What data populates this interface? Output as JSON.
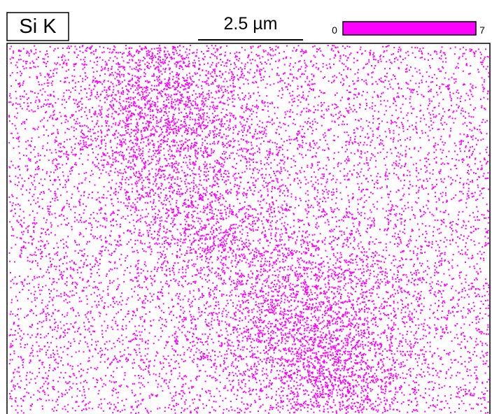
{
  "label": "Si K",
  "scale_bar": "2.5 µm",
  "colorbar": {
    "min": 0,
    "max": 7
  }
}
